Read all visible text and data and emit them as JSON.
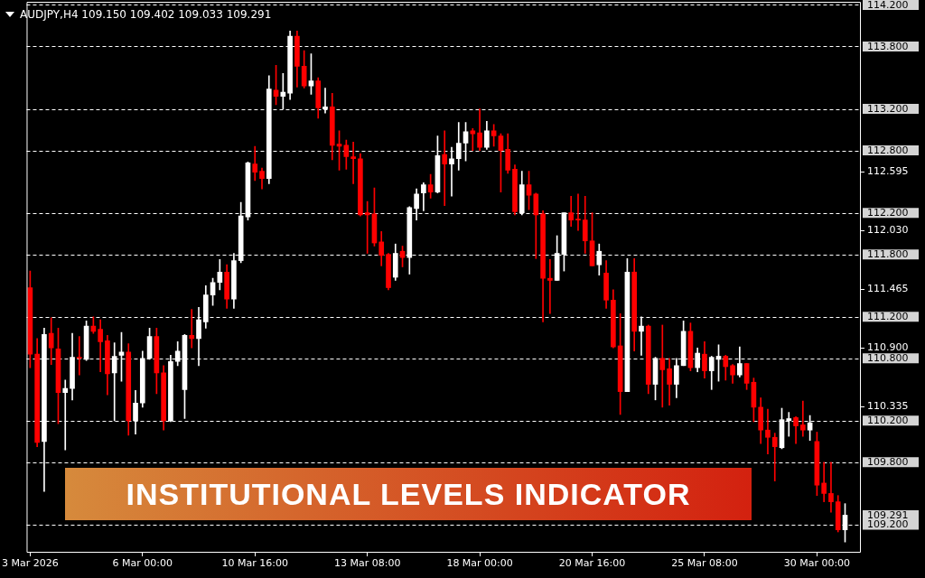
{
  "chart_data": {
    "type": "candlestick",
    "title": "INSTITUTIONAL LEVELS INDICATOR",
    "subtitle": "AUDJPY,H4 109.150 109.402 109.033 109.291",
    "categories": [
      "3 Mar 2026",
      null,
      null,
      null,
      null,
      null,
      null,
      null,
      null,
      null,
      null,
      null,
      null,
      null,
      null,
      null,
      "6 Mar 00:00",
      null,
      null,
      null,
      null,
      null,
      null,
      null,
      null,
      null,
      null,
      null,
      null,
      null,
      null,
      null,
      "10 Mar 16:00",
      null,
      null,
      null,
      null,
      null,
      null,
      null,
      null,
      null,
      null,
      null,
      null,
      null,
      null,
      null,
      "13 Mar 08:00",
      null,
      null,
      null,
      null,
      null,
      null,
      null,
      null,
      null,
      null,
      null,
      null,
      null,
      null,
      null,
      "18 Mar 00:00",
      null,
      null,
      null,
      null,
      null,
      null,
      null,
      null,
      null,
      null,
      null,
      null,
      null,
      null,
      null,
      "20 Mar 16:00",
      null,
      null,
      null,
      null,
      null,
      null,
      null,
      null,
      null,
      null,
      null,
      null,
      null,
      null,
      null,
      "25 Mar 08:00",
      null,
      null,
      null,
      null,
      null,
      null,
      null,
      null,
      null,
      null,
      null,
      null,
      null,
      null,
      null,
      "30 Mar 00:00",
      null,
      null,
      null,
      null
    ],
    "ohlc": [
      [
        111.48,
        111.64,
        110.71,
        110.84
      ],
      [
        110.84,
        110.99,
        109.95,
        109.99
      ],
      [
        110.0,
        111.09,
        109.52,
        111.03
      ],
      [
        111.04,
        111.19,
        110.74,
        110.9
      ],
      [
        110.89,
        111.09,
        110.17,
        110.47
      ],
      [
        110.47,
        110.59,
        109.92,
        110.51
      ],
      [
        110.51,
        111.04,
        110.4,
        110.81
      ],
      [
        110.81,
        111.01,
        110.64,
        110.8
      ],
      [
        110.79,
        111.16,
        110.78,
        111.11
      ],
      [
        111.11,
        111.2,
        111.04,
        111.06
      ],
      [
        111.08,
        111.17,
        110.67,
        110.96
      ],
      [
        110.97,
        111.02,
        110.45,
        110.65
      ],
      [
        110.66,
        110.95,
        110.2,
        110.82
      ],
      [
        110.83,
        111.05,
        110.58,
        110.86
      ],
      [
        110.86,
        110.94,
        110.06,
        110.2
      ],
      [
        110.2,
        110.49,
        110.07,
        110.37
      ],
      [
        110.37,
        110.87,
        110.33,
        110.8
      ],
      [
        110.8,
        111.09,
        110.79,
        111.01
      ],
      [
        111.01,
        111.09,
        110.46,
        110.66
      ],
      [
        110.66,
        110.73,
        110.11,
        110.2
      ],
      [
        110.2,
        110.83,
        110.19,
        110.77
      ],
      [
        110.77,
        110.96,
        110.73,
        110.87
      ],
      [
        110.5,
        111.03,
        110.22,
        111.02
      ],
      [
        111.02,
        111.27,
        110.9,
        110.99
      ],
      [
        110.99,
        111.29,
        110.73,
        111.17
      ],
      [
        111.15,
        111.5,
        111.09,
        111.41
      ],
      [
        111.41,
        111.57,
        111.31,
        111.53
      ],
      [
        111.53,
        111.75,
        111.46,
        111.63
      ],
      [
        111.63,
        111.7,
        111.28,
        111.37
      ],
      [
        111.37,
        111.81,
        111.28,
        111.74
      ],
      [
        111.74,
        112.3,
        111.72,
        112.17
      ],
      [
        112.16,
        112.69,
        112.13,
        112.68
      ],
      [
        112.67,
        112.84,
        112.51,
        112.59
      ],
      [
        112.6,
        112.63,
        112.43,
        112.53
      ],
      [
        112.53,
        113.52,
        112.48,
        113.39
      ],
      [
        113.38,
        113.62,
        113.24,
        113.32
      ],
      [
        113.32,
        113.54,
        113.2,
        113.36
      ],
      [
        113.35,
        113.95,
        113.29,
        113.9
      ],
      [
        113.9,
        113.95,
        113.41,
        113.61
      ],
      [
        113.61,
        113.76,
        113.4,
        113.42
      ],
      [
        113.42,
        113.73,
        113.34,
        113.47
      ],
      [
        113.47,
        113.5,
        113.11,
        113.21
      ],
      [
        113.2,
        113.4,
        113.16,
        113.22
      ],
      [
        113.22,
        113.35,
        112.71,
        112.85
      ],
      [
        112.86,
        112.99,
        112.61,
        112.84
      ],
      [
        112.85,
        112.9,
        112.62,
        112.74
      ],
      [
        112.74,
        112.88,
        112.48,
        112.72
      ],
      [
        112.72,
        112.77,
        112.17,
        112.18
      ],
      [
        112.2,
        112.31,
        111.81,
        112.18
      ],
      [
        112.19,
        112.44,
        111.88,
        111.91
      ],
      [
        111.92,
        112.02,
        111.69,
        111.79
      ],
      [
        111.8,
        111.81,
        111.46,
        111.48
      ],
      [
        111.58,
        111.9,
        111.55,
        111.81
      ],
      [
        111.83,
        111.88,
        111.68,
        111.77
      ],
      [
        111.77,
        112.26,
        111.61,
        112.25
      ],
      [
        112.24,
        112.43,
        112.13,
        112.38
      ],
      [
        112.39,
        112.49,
        112.22,
        112.47
      ],
      [
        112.47,
        112.57,
        112.34,
        112.4
      ],
      [
        112.4,
        112.94,
        112.39,
        112.75
      ],
      [
        112.76,
        112.99,
        112.27,
        112.67
      ],
      [
        112.67,
        112.83,
        112.36,
        112.72
      ],
      [
        112.72,
        113.07,
        112.61,
        112.87
      ],
      [
        112.87,
        113.07,
        112.7,
        112.98
      ],
      [
        112.99,
        113.01,
        112.8,
        112.96
      ],
      [
        112.97,
        113.2,
        112.8,
        112.83
      ],
      [
        112.83,
        113.08,
        112.81,
        112.99
      ],
      [
        112.99,
        113.05,
        112.84,
        112.94
      ],
      [
        112.94,
        112.96,
        112.4,
        112.8
      ],
      [
        112.81,
        112.96,
        112.58,
        112.61
      ],
      [
        112.62,
        112.66,
        112.18,
        112.21
      ],
      [
        112.2,
        112.6,
        112.18,
        112.47
      ],
      [
        112.47,
        112.6,
        112.23,
        112.37
      ],
      [
        112.38,
        112.39,
        111.76,
        112.18
      ],
      [
        112.19,
        112.22,
        111.15,
        111.57
      ],
      [
        111.57,
        111.75,
        111.23,
        111.55
      ],
      [
        111.55,
        111.98,
        111.55,
        111.81
      ],
      [
        111.8,
        112.2,
        111.64,
        112.2
      ],
      [
        112.2,
        112.36,
        112.07,
        112.13
      ],
      [
        112.14,
        112.38,
        112.03,
        112.13
      ],
      [
        112.13,
        112.36,
        111.81,
        111.93
      ],
      [
        111.93,
        112.2,
        111.69,
        111.69
      ],
      [
        111.7,
        111.9,
        111.6,
        111.83
      ],
      [
        111.62,
        111.74,
        111.28,
        111.36
      ],
      [
        111.36,
        111.46,
        110.9,
        110.91
      ],
      [
        110.92,
        111.23,
        110.26,
        110.48
      ],
      [
        110.48,
        111.76,
        110.48,
        111.63
      ],
      [
        111.63,
        111.76,
        110.87,
        111.06
      ],
      [
        111.06,
        111.2,
        110.83,
        111.11
      ],
      [
        111.11,
        111.12,
        110.46,
        110.55
      ],
      [
        110.55,
        110.81,
        110.4,
        110.8
      ],
      [
        110.8,
        111.12,
        110.33,
        110.69
      ],
      [
        110.7,
        110.8,
        110.35,
        110.55
      ],
      [
        110.55,
        110.8,
        110.42,
        110.73
      ],
      [
        110.73,
        111.16,
        110.73,
        111.06
      ],
      [
        111.06,
        111.14,
        110.68,
        110.71
      ],
      [
        110.71,
        110.9,
        110.67,
        110.85
      ],
      [
        110.84,
        110.96,
        110.61,
        110.68
      ],
      [
        110.68,
        110.82,
        110.5,
        110.81
      ],
      [
        110.79,
        110.93,
        110.58,
        110.82
      ],
      [
        110.82,
        110.83,
        110.59,
        110.72
      ],
      [
        110.73,
        110.74,
        110.56,
        110.64
      ],
      [
        110.64,
        110.91,
        110.62,
        110.75
      ],
      [
        110.75,
        110.75,
        110.5,
        110.56
      ],
      [
        110.57,
        110.61,
        110.19,
        110.33
      ],
      [
        110.33,
        110.42,
        109.98,
        110.11
      ],
      [
        110.11,
        110.31,
        109.88,
        110.04
      ],
      [
        110.04,
        110.08,
        109.62,
        109.95
      ],
      [
        109.94,
        110.32,
        109.93,
        110.21
      ],
      [
        110.2,
        110.28,
        110.05,
        110.22
      ],
      [
        110.23,
        110.24,
        109.98,
        110.15
      ],
      [
        110.16,
        110.39,
        110.05,
        110.11
      ],
      [
        110.11,
        110.25,
        110.01,
        110.18
      ],
      [
        110.0,
        110.09,
        109.48,
        109.58
      ],
      [
        109.6,
        109.8,
        109.42,
        109.5
      ],
      [
        109.5,
        109.8,
        109.32,
        109.42
      ],
      [
        109.42,
        109.48,
        109.13,
        109.15
      ],
      [
        109.15,
        109.402,
        109.033,
        109.291
      ]
    ],
    "colors": [
      "#ff0000",
      "#ff0000",
      "#ffffff",
      "#ff0000",
      "#ff0000",
      "#ffffff",
      "#ffffff",
      "#ff0000",
      "#ffffff",
      "#ff0000",
      "#ff0000",
      "#ff0000",
      "#ffffff",
      "#ffffff",
      "#ff0000",
      "#ffffff",
      "#ffffff",
      "#ffffff",
      "#ff0000",
      "#ff0000",
      "#ffffff",
      "#ffffff",
      "#ffffff",
      "#ff0000",
      "#ffffff",
      "#ffffff",
      "#ffffff",
      "#ffffff",
      "#ff0000",
      "#ffffff",
      "#ffffff",
      "#ffffff",
      "#ff0000",
      "#ff0000",
      "#ffffff",
      "#ff0000",
      "#ffffff",
      "#ffffff",
      "#ff0000",
      "#ff0000",
      "#ffffff",
      "#ff0000",
      "#ffffff",
      "#ff0000",
      "#ff0000",
      "#ff0000",
      "#ff0000",
      "#ff0000",
      "#ff0000",
      "#ff0000",
      "#ff0000",
      "#ff0000",
      "#ffffff",
      "#ff0000",
      "#ffffff",
      "#ffffff",
      "#ffffff",
      "#ff0000",
      "#ffffff",
      "#ff0000",
      "#ffffff",
      "#ffffff",
      "#ffffff",
      "#ff0000",
      "#ff0000",
      "#ffffff",
      "#ff0000",
      "#ff0000",
      "#ff0000",
      "#ff0000",
      "#ffffff",
      "#ff0000",
      "#ff0000",
      "#ff0000",
      "#ff0000",
      "#ffffff",
      "#ffffff",
      "#ff0000",
      "#ff0000",
      "#ff0000",
      "#ff0000",
      "#ffffff",
      "#ff0000",
      "#ff0000",
      "#ff0000",
      "#ffffff",
      "#ff0000",
      "#ffffff",
      "#ff0000",
      "#ffffff",
      "#ff0000",
      "#ff0000",
      "#ffffff",
      "#ffffff",
      "#ff0000",
      "#ffffff",
      "#ff0000",
      "#ffffff",
      "#ffffff",
      "#ff0000",
      "#ff0000",
      "#ffffff",
      "#ff0000",
      "#ff0000",
      "#ff0000",
      "#ff0000",
      "#ff0000",
      "#ffffff",
      "#ffffff",
      "#ff0000",
      "#ff0000",
      "#ffffff",
      "#ff0000",
      "#ff0000",
      "#ff0000",
      "#ff0000",
      "#ffffff"
    ],
    "ylim": [
      108.93,
      114.23
    ],
    "yticks": [
      112.595,
      {
        "value": 112.03,
        "label": "112.030"
      },
      111.465,
      {
        "value": 110.9,
        "label": "110.900"
      },
      110.335
    ],
    "grid": false,
    "legend": false,
    "ref_lines": [
      {
        "axis": "y",
        "value": 114.2,
        "label": "114.200",
        "color": "#ffffff",
        "line_style": "dashed"
      },
      {
        "axis": "y",
        "value": 113.8,
        "label": "113.800",
        "color": "#ffffff",
        "line_style": "dashed"
      },
      {
        "axis": "y",
        "value": 113.2,
        "label": "113.200",
        "color": "#ffffff",
        "line_style": "dashed"
      },
      {
        "axis": "y",
        "value": 112.8,
        "label": "112.800",
        "color": "#ffffff",
        "line_style": "dashed"
      },
      {
        "axis": "y",
        "value": 112.2,
        "label": "112.200",
        "color": "#ffffff",
        "line_style": "dashed"
      },
      {
        "axis": "y",
        "value": 111.8,
        "label": "111.800",
        "color": "#ffffff",
        "line_style": "dashed"
      },
      {
        "axis": "y",
        "value": 111.2,
        "label": "111.200",
        "color": "#ffffff",
        "line_style": "dashed"
      },
      {
        "axis": "y",
        "value": 110.8,
        "label": "110.800",
        "color": "#ffffff",
        "line_style": "dashed"
      },
      {
        "axis": "y",
        "value": 110.2,
        "label": "110.200",
        "color": "#ffffff",
        "line_style": "dashed"
      },
      {
        "axis": "y",
        "value": 109.8,
        "label": "109.800",
        "color": "#ffffff",
        "line_style": "dashed"
      },
      {
        "axis": "y",
        "value": 109.2,
        "label": "109.200",
        "color": "#ffffff",
        "line_style": "dashed"
      }
    ],
    "annotations": [
      "109.291"
    ]
  }
}
